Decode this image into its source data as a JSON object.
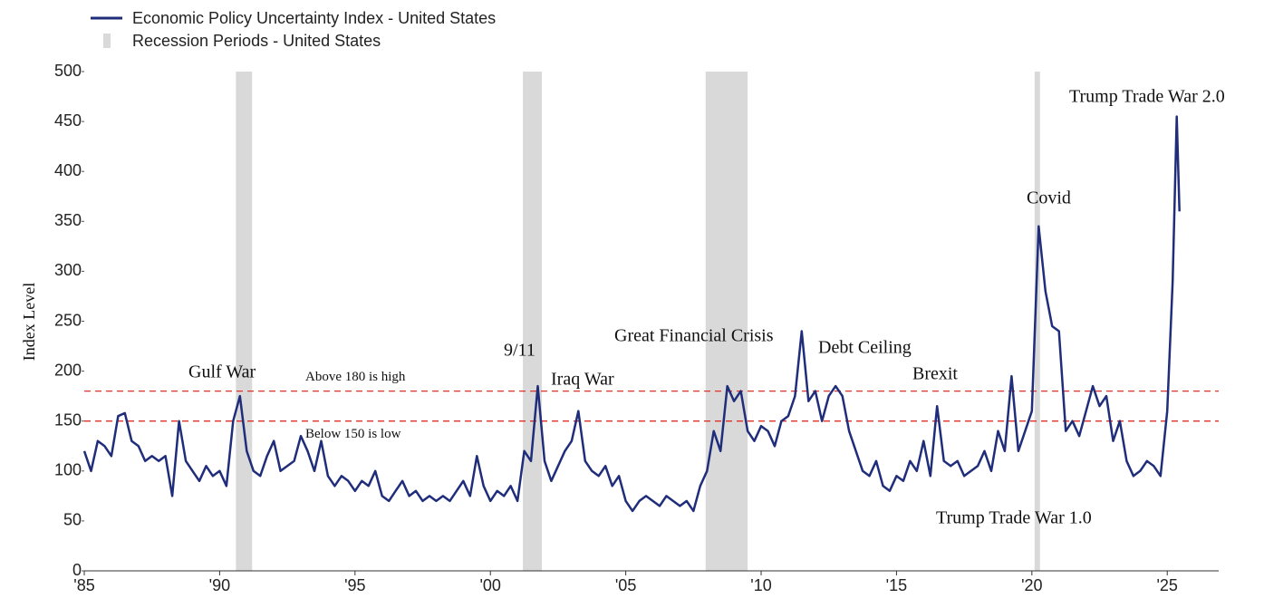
{
  "chart_data": {
    "type": "line",
    "y_axis_label": "Index Level",
    "series": [
      {
        "name": "Economic Policy Uncertainty Index - United States",
        "color": "#1f2d7a",
        "values": [
          120,
          100,
          130,
          125,
          115,
          155,
          158,
          130,
          125,
          110,
          115,
          110,
          115,
          75,
          150,
          110,
          100,
          90,
          105,
          95,
          100,
          85,
          150,
          175,
          120,
          100,
          95,
          115,
          130,
          100,
          105,
          110,
          135,
          120,
          100,
          130,
          95,
          85,
          95,
          90,
          80,
          90,
          85,
          100,
          75,
          70,
          80,
          90,
          75,
          80,
          70,
          75,
          70,
          75,
          70,
          80,
          90,
          75,
          115,
          85,
          70,
          80,
          75,
          85,
          70,
          120,
          110,
          185,
          110,
          90,
          105,
          120,
          130,
          160,
          110,
          100,
          95,
          105,
          85,
          95,
          70,
          60,
          70,
          75,
          70,
          65,
          75,
          70,
          65,
          70,
          60,
          85,
          100,
          140,
          120,
          185,
          170,
          180,
          140,
          130,
          145,
          140,
          125,
          150,
          155,
          175,
          240,
          170,
          180,
          150,
          175,
          185,
          175,
          140,
          120,
          100,
          95,
          110,
          85,
          80,
          95,
          90,
          110,
          100,
          130,
          95,
          165,
          110,
          105,
          110,
          95,
          100,
          105,
          120,
          100,
          140,
          120,
          195,
          120,
          140,
          160,
          345,
          280,
          245,
          240,
          140,
          150,
          135,
          160,
          185,
          165,
          175,
          130,
          150,
          110,
          95,
          100,
          110,
          105,
          95,
          160,
          290,
          455,
          360
        ]
      }
    ],
    "x": [
      1985,
      1985.25,
      1985.5,
      1985.75,
      1986,
      1986.25,
      1986.5,
      1986.75,
      1987,
      1987.25,
      1987.5,
      1987.75,
      1988,
      1988.25,
      1988.5,
      1988.75,
      1989,
      1989.25,
      1989.5,
      1989.75,
      1990,
      1990.25,
      1990.5,
      1990.75,
      1991,
      1991.25,
      1991.5,
      1991.75,
      1992,
      1992.25,
      1992.5,
      1992.75,
      1993,
      1993.25,
      1993.5,
      1993.75,
      1994,
      1994.25,
      1994.5,
      1994.75,
      1995,
      1995.25,
      1995.5,
      1995.75,
      1996,
      1996.25,
      1996.5,
      1996.75,
      1997,
      1997.25,
      1997.5,
      1997.75,
      1998,
      1998.25,
      1998.5,
      1998.75,
      1999,
      1999.25,
      1999.5,
      1999.75,
      2000,
      2000.25,
      2000.5,
      2000.75,
      2001,
      2001.25,
      2001.5,
      2001.75,
      2002,
      2002.25,
      2002.5,
      2002.75,
      2003,
      2003.25,
      2003.5,
      2003.75,
      2004,
      2004.25,
      2004.5,
      2004.75,
      2005,
      2005.25,
      2005.5,
      2005.75,
      2006,
      2006.25,
      2006.5,
      2006.75,
      2007,
      2007.25,
      2007.5,
      2007.75,
      2008,
      2008.25,
      2008.5,
      2008.75,
      2009,
      2009.25,
      2009.5,
      2009.75,
      2010,
      2010.25,
      2010.5,
      2010.75,
      2011,
      2011.25,
      2011.5,
      2011.75,
      2012,
      2012.25,
      2012.5,
      2012.75,
      2013,
      2013.25,
      2013.5,
      2013.75,
      2014,
      2014.25,
      2014.5,
      2014.75,
      2015,
      2015.25,
      2015.5,
      2015.75,
      2016,
      2016.25,
      2016.5,
      2016.75,
      2017,
      2017.25,
      2017.5,
      2017.75,
      2018,
      2018.25,
      2018.5,
      2018.75,
      2019,
      2019.25,
      2019.5,
      2019.75,
      2020,
      2020.25,
      2020.5,
      2020.75,
      2021,
      2021.25,
      2021.5,
      2021.75,
      2022,
      2022.25,
      2022.5,
      2022.75,
      2023,
      2023.25,
      2023.5,
      2023.75,
      2024,
      2024.25,
      2024.5,
      2024.75,
      2025,
      2025.2,
      2025.35,
      2025.45
    ],
    "recession_name": "Recession Periods - United States",
    "recession_color": "#d9d9d9",
    "recessions": [
      [
        1990.6,
        1991.2
      ],
      [
        2001.2,
        2001.9
      ],
      [
        2007.95,
        2009.5
      ],
      [
        2020.1,
        2020.3
      ]
    ],
    "thresholds": [
      {
        "value": 180,
        "label": "Above 180 is high"
      },
      {
        "value": 150,
        "label": "Below 150 is low"
      }
    ],
    "threshold_color": "#e0302a",
    "annotations": [
      "Gulf War",
      "9/11",
      "Iraq War",
      "Great Financial Crisis",
      "Debt Ceiling",
      "Brexit",
      "Trump Trade War 1.0",
      "Covid",
      "Trump Trade War 2.0"
    ],
    "xlim": [
      1985,
      2026.9
    ],
    "xticks": [
      {
        "value": 1985,
        "label": "'85"
      },
      {
        "value": 1990,
        "label": "'90"
      },
      {
        "value": 1995,
        "label": "'95"
      },
      {
        "value": 2000,
        "label": "'00"
      },
      {
        "value": 2005,
        "label": "'05"
      },
      {
        "value": 2010,
        "label": "'10"
      },
      {
        "value": 2015,
        "label": "'15"
      },
      {
        "value": 2020,
        "label": "'20"
      },
      {
        "value": 2025,
        "label": "'25"
      }
    ],
    "ylim": [
      0,
      500
    ],
    "yticks": [
      0,
      50,
      100,
      150,
      200,
      250,
      300,
      350,
      400,
      450,
      500
    ]
  }
}
